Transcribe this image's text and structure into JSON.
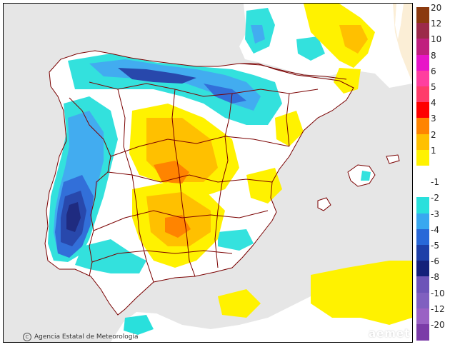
{
  "map": {
    "credit": "Agencia Estatal de Meteorología",
    "logo": "aemet",
    "colors": {
      "sea": "#e6e6e6",
      "land": "#ffffff",
      "border": "#7a0000"
    }
  },
  "legend": {
    "entries": [
      {
        "label": "20",
        "color": "#8b3a0f"
      },
      {
        "label": "12",
        "color": "#9c2a4a"
      },
      {
        "label": "10",
        "color": "#c0207e"
      },
      {
        "label": "8",
        "color": "#e815c8"
      },
      {
        "label": "6",
        "color": "#ff3f9f"
      },
      {
        "label": "5",
        "color": "#ff3c6a"
      },
      {
        "label": "4",
        "color": "#ff0000"
      },
      {
        "label": "3",
        "color": "#ff8400"
      },
      {
        "label": "2",
        "color": "#ffc000"
      },
      {
        "label": "1",
        "color": "#fff200"
      },
      {
        "label": "",
        "color": "#ffffff"
      },
      {
        "label": "-1",
        "color": "#ffffff"
      },
      {
        "label": "-2",
        "color": "#29e0dc"
      },
      {
        "label": "-3",
        "color": "#38a8f0"
      },
      {
        "label": "-4",
        "color": "#2868d8"
      },
      {
        "label": "-5",
        "color": "#1d3fa8"
      },
      {
        "label": "-6",
        "color": "#14207a"
      },
      {
        "label": "-8",
        "color": "#6d54b8"
      },
      {
        "label": "-10",
        "color": "#8060c0"
      },
      {
        "label": "-12",
        "color": "#9a62c4"
      },
      {
        "label": "-20",
        "color": "#7b3ca8"
      }
    ]
  }
}
